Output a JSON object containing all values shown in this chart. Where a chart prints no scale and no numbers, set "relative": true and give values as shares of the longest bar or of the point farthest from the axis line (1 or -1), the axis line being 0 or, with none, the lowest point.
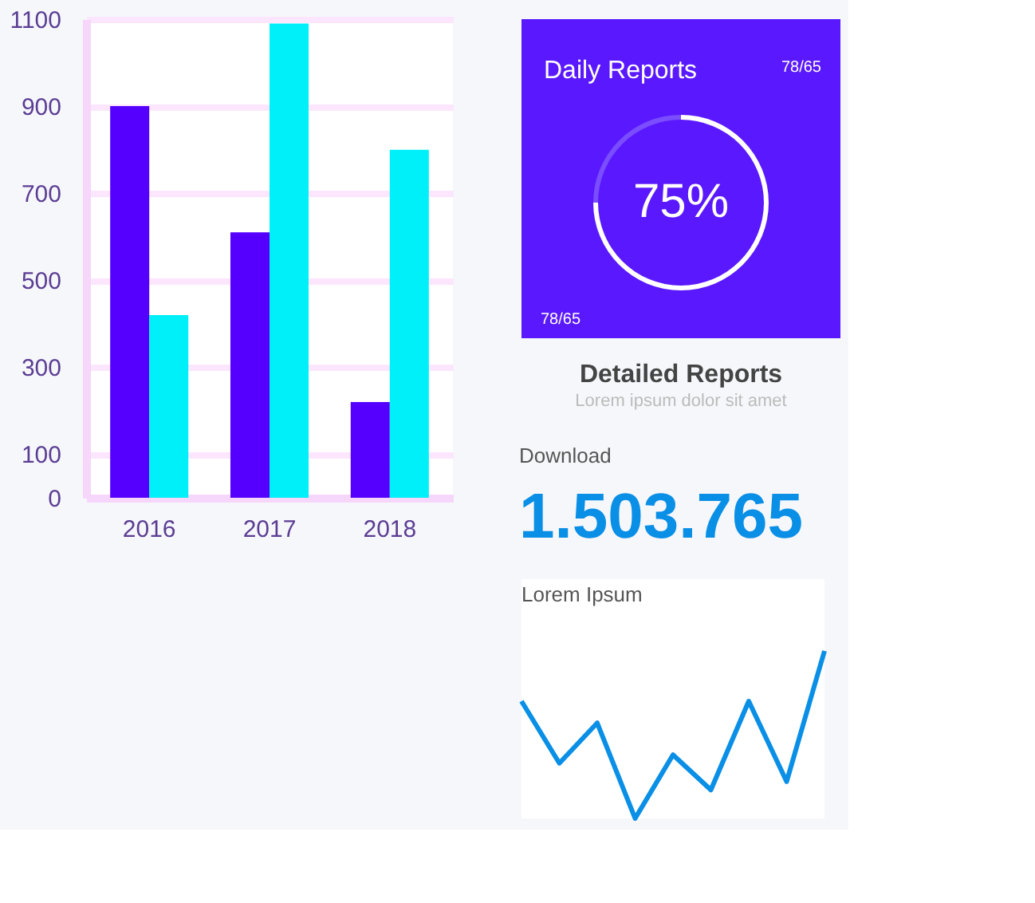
{
  "chart_data": [
    {
      "type": "bar",
      "categories": [
        "2016",
        "2017",
        "2018"
      ],
      "series": [
        {
          "color": "#5500ff",
          "values": [
            900,
            610,
            220
          ]
        },
        {
          "color": "#00f0fa",
          "values": [
            420,
            1090,
            800
          ]
        }
      ],
      "ylim": [
        0,
        1100
      ],
      "yticks": [
        0,
        100,
        300,
        500,
        700,
        900,
        1100
      ],
      "grid": "y"
    },
    {
      "type": "donut",
      "title": "Daily Reports",
      "categories": [
        null,
        null
      ],
      "values": [
        75,
        25
      ],
      "colors": [
        "#ffffff",
        "#7a4dff"
      ],
      "value_labels": [
        "75%",
        null
      ],
      "annotations": [
        "78/65",
        "78/65"
      ]
    },
    {
      "type": "other",
      "title": "Detailed Reports",
      "subtitle": "Lorem ipsum dolor sit amet"
    },
    {
      "type": "line",
      "title": "Download",
      "subtitle": "1.503.765",
      "annotations": [
        "Lorem Ipsum"
      ],
      "categories": [
        null,
        null,
        null,
        null,
        null,
        null,
        null,
        null,
        null
      ],
      "series": [
        {
          "color": "#0a8fe6",
          "values": [
            0.7,
            0.33,
            0.57,
            0,
            0.38,
            0.17,
            0.7,
            0.22,
            1
          ]
        }
      ],
      "relative": true
    }
  ]
}
